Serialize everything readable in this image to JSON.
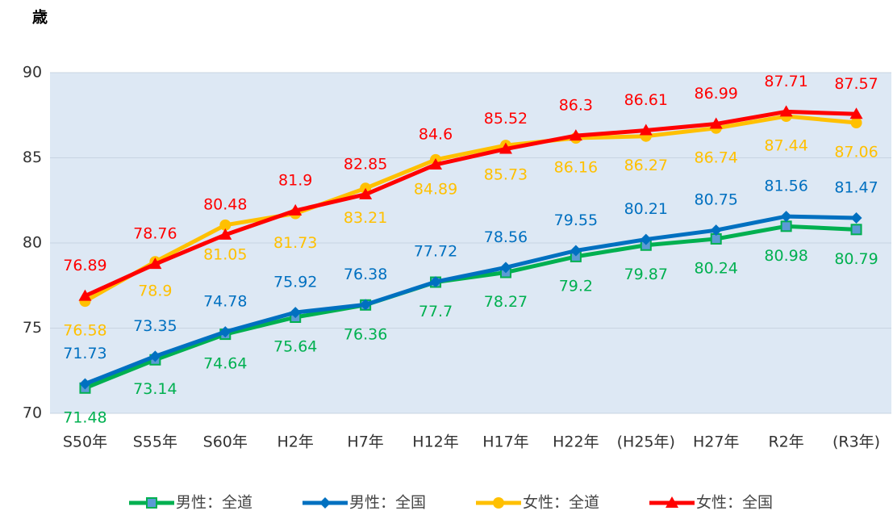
{
  "chart_data": {
    "type": "line",
    "y_label": "歳",
    "categories": [
      "S50年",
      "S55年",
      "S60年",
      "H2年",
      "H7年",
      "H12年",
      "H17年",
      "H22年",
      "(H25年)",
      "H27年",
      "R2年",
      "(R3年)"
    ],
    "series": [
      {
        "name": "男性：全道",
        "color": "#00b050",
        "marker": "square",
        "values": [
          71.48,
          73.14,
          74.64,
          75.64,
          76.36,
          77.7,
          78.27,
          79.2,
          79.87,
          80.24,
          80.98,
          80.79
        ]
      },
      {
        "name": "男性：全国",
        "color": "#0070c0",
        "marker": "diamond",
        "values": [
          71.73,
          73.35,
          74.78,
          75.92,
          76.38,
          77.72,
          78.56,
          79.55,
          80.21,
          80.75,
          81.56,
          81.47
        ]
      },
      {
        "name": "女性：全道",
        "color": "#ffc000",
        "marker": "circle",
        "values": [
          76.58,
          78.9,
          81.05,
          81.73,
          83.21,
          84.89,
          85.73,
          86.16,
          86.27,
          86.74,
          87.44,
          87.06
        ]
      },
      {
        "name": "女性：全国",
        "color": "#ff0000",
        "marker": "triangle",
        "values": [
          76.89,
          78.76,
          80.48,
          81.9,
          82.85,
          84.6,
          85.52,
          86.3,
          86.61,
          86.99,
          87.71,
          87.57
        ]
      }
    ],
    "ylim": [
      70,
      90
    ],
    "yticks": [
      70,
      75,
      80,
      85,
      90
    ],
    "grid": true
  }
}
